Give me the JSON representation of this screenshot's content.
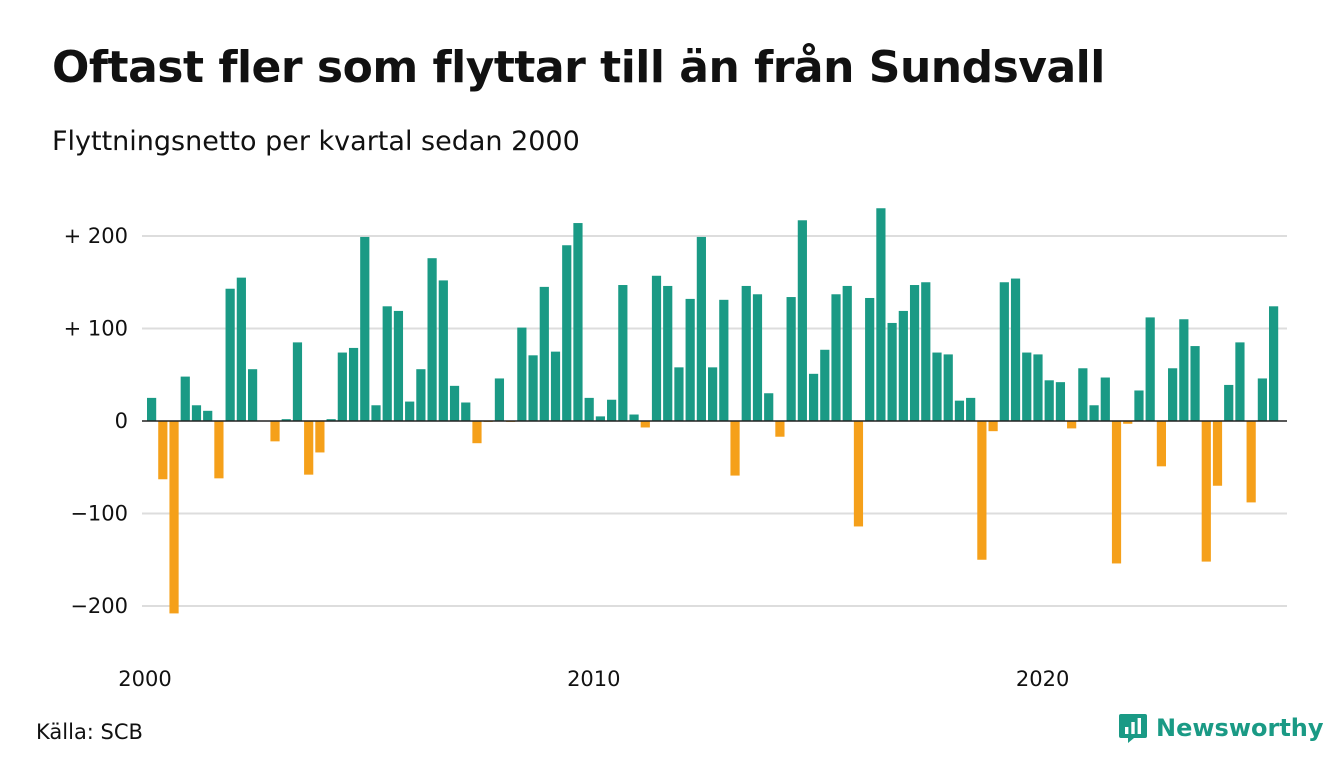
{
  "header": {
    "title": "Oftast fler som flyttar till än från Sundsvall",
    "subtitle": "Flyttningsnetto per kvartal sedan 2000"
  },
  "footer": {
    "source": "Källa: SCB",
    "brand": "Newsworthy"
  },
  "colors": {
    "positive": "#1a9a85",
    "negative": "#f5a01a",
    "grid": "#dddddd",
    "zero_line": "#222222"
  },
  "chart_data": {
    "type": "bar",
    "x_start": "2000 Q1",
    "frequency": "quarter",
    "x_ticks": [
      "2000",
      "2010",
      "2020"
    ],
    "y_ticks": [
      {
        "value": 200,
        "label": "+ 200"
      },
      {
        "value": 100,
        "label": "+ 100"
      },
      {
        "value": 0,
        "label": "0"
      },
      {
        "value": -100,
        "label": "−100"
      },
      {
        "value": -200,
        "label": "−200"
      }
    ],
    "ylim": [
      -225,
      230
    ],
    "grid": true,
    "values": [
      25,
      -63,
      -208,
      48,
      17,
      11,
      -62,
      143,
      155,
      56,
      0,
      -22,
      2,
      85,
      -58,
      -34,
      2,
      74,
      79,
      199,
      17,
      124,
      119,
      21,
      56,
      176,
      152,
      38,
      20,
      -24,
      -1,
      46,
      -1,
      101,
      71,
      145,
      75,
      190,
      214,
      25,
      5,
      23,
      147,
      7,
      -7,
      157,
      146,
      58,
      132,
      199,
      58,
      131,
      -59,
      146,
      137,
      30,
      -17,
      134,
      217,
      51,
      77,
      137,
      146,
      -114,
      133,
      230,
      106,
      119,
      147,
      150,
      74,
      72,
      22,
      25,
      -150,
      -11,
      150,
      154,
      74,
      72,
      44,
      42,
      -8,
      57,
      17,
      47,
      -154,
      -3,
      33,
      112,
      -49,
      57,
      110,
      81,
      -152,
      -70,
      39,
      85,
      -88,
      46,
      124
    ]
  }
}
